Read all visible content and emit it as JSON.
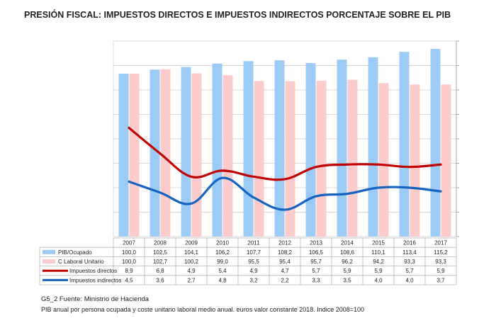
{
  "title": "PRESIÓN FISCAL: IMPUESTOS DIRECTOS E IMPUESTOS INDIRECTOS PORCENTAJE SOBRE EL PIB",
  "source_line": "G5_2  Fuente: Ministrio de Hacienda",
  "description_line": "PIB anual por persona ocupada y coste unitario laboral medio anual. euros valor constante 2018. Indice 2008=100",
  "colors": {
    "pib": "#9ccbf5",
    "clu": "#fccbcb",
    "directos": "#c00000",
    "indirectos": "#1565c0",
    "grid": "#d9d9d9"
  },
  "chart_data": {
    "type": "bar",
    "categories": [
      "2007",
      "2008",
      "2009",
      "2010",
      "2011",
      "2012",
      "2013",
      "2014",
      "2015",
      "2016",
      "2017"
    ],
    "bar_axis_range": [
      0,
      120
    ],
    "line_axis_range": [
      0,
      16
    ],
    "series": [
      {
        "name": "PIB/Ocupado",
        "kind": "bar",
        "labels": [
          "100,0",
          "102,5",
          "104,1",
          "106,2",
          "107,7",
          "108,2",
          "106,5",
          "108,6",
          "110,1",
          "113,4",
          "115,2"
        ],
        "values": [
          100.0,
          102.5,
          104.1,
          106.2,
          107.7,
          108.2,
          106.5,
          108.6,
          110.1,
          113.4,
          115.2
        ]
      },
      {
        "name": "C Laboral Unitario",
        "kind": "bar",
        "labels": [
          "100,0",
          "102,7",
          "100,2",
          "99,0",
          "95,5",
          "95,4",
          "95,7",
          "96,2",
          "94,2",
          "93,3",
          "93,3"
        ],
        "values": [
          100.0,
          102.7,
          100.2,
          99.0,
          95.5,
          95.4,
          95.7,
          96.2,
          94.2,
          93.3,
          93.3
        ]
      },
      {
        "name": "Impuestos directos",
        "kind": "line",
        "labels": [
          "8,9",
          "6,8",
          "4,9",
          "5,4",
          "4,9",
          "4,7",
          "5,7",
          "5,9",
          "5,9",
          "5,7",
          "5,9"
        ],
        "values": [
          8.9,
          6.8,
          4.9,
          5.4,
          4.9,
          4.7,
          5.7,
          5.9,
          5.9,
          5.7,
          5.9
        ]
      },
      {
        "name": "Impuestos indirectos",
        "kind": "line",
        "labels": [
          "4,5",
          "3,6",
          "2,7",
          "4,8",
          "3,2",
          "2,2",
          "3,3",
          "3,5",
          "4,0",
          "4,0",
          "3,7"
        ],
        "values": [
          4.5,
          3.6,
          2.7,
          4.8,
          3.2,
          2.2,
          3.3,
          3.5,
          4.0,
          4.0,
          3.7
        ]
      }
    ]
  }
}
